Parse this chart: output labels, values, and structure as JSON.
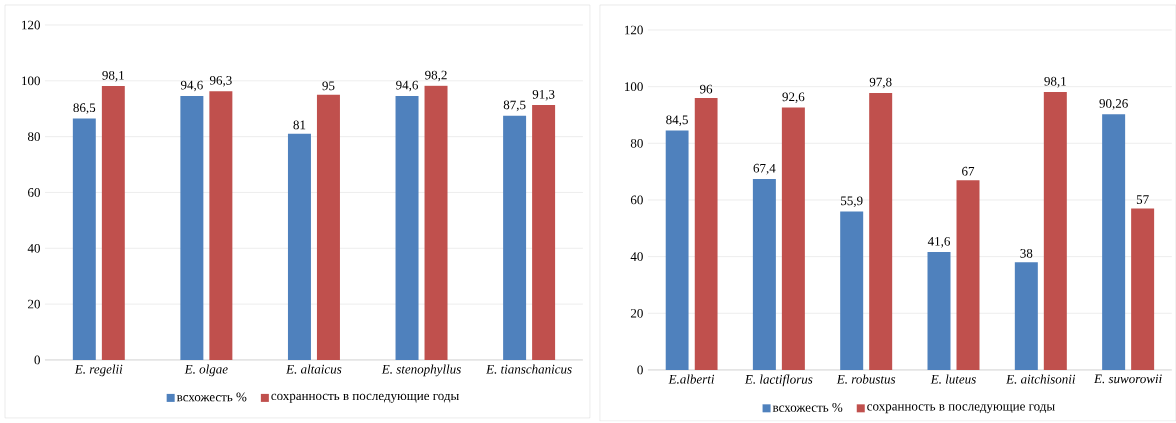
{
  "chart_data": [
    {
      "type": "bar",
      "categories": [
        "E. regelii",
        "E. olgae",
        "E. altaicus",
        "E. stenophyllus",
        "E. tianschanicus"
      ],
      "series": [
        {
          "name": "всхожесть  %",
          "color": "#4f81bd",
          "values": [
            86.5,
            94.6,
            81,
            94.6,
            87.5
          ],
          "value_labels": [
            "86,5",
            "94,6",
            "81",
            "94,6",
            "87,5"
          ]
        },
        {
          "name": "сохранность в последующие годы",
          "color": "#c0504d",
          "values": [
            98.1,
            96.3,
            95,
            98.2,
            91.3
          ],
          "value_labels": [
            "98,1",
            "96,3",
            "95",
            "98,2",
            "91,3"
          ]
        }
      ],
      "ylim": [
        0,
        120
      ],
      "yticks": [
        0,
        20,
        40,
        60,
        80,
        100,
        120
      ],
      "grid": "y",
      "legend": "bottom"
    },
    {
      "type": "bar",
      "categories": [
        "E.alberti",
        "E. lactiflorus",
        "E. robustus",
        "E. luteus",
        "E. aitchisonii",
        "E. suworowii"
      ],
      "series": [
        {
          "name": "всхожесть  %",
          "color": "#4f81bd",
          "values": [
            84.5,
            67.4,
            55.9,
            41.6,
            38,
            90.26
          ],
          "value_labels": [
            "84,5",
            "67,4",
            "55,9",
            "41,6",
            "38",
            "90,26"
          ]
        },
        {
          "name": "сохранность в последующие годы",
          "color": "#c0504d",
          "values": [
            96,
            92.6,
            97.8,
            67,
            98.1,
            57
          ],
          "value_labels": [
            "96",
            "92,6",
            "97,8",
            "67",
            "98,1",
            "57"
          ]
        }
      ],
      "ylim": [
        0,
        120
      ],
      "yticks": [
        0,
        20,
        40,
        60,
        80,
        100,
        120
      ],
      "grid": "y",
      "legend": "bottom"
    }
  ]
}
